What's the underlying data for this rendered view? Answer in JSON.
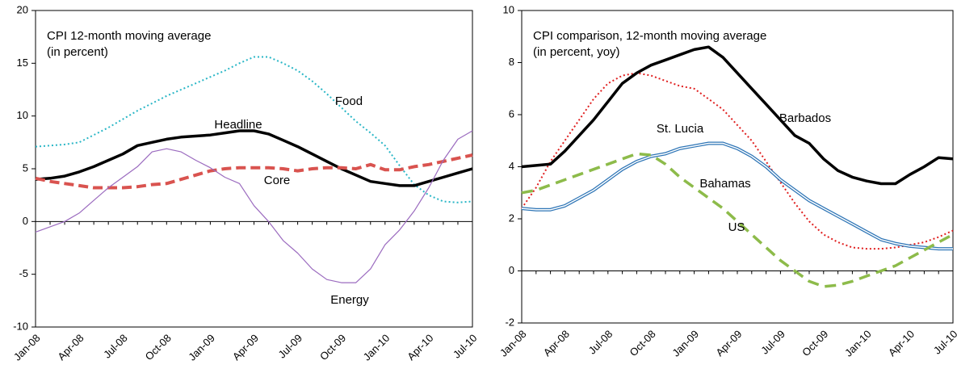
{
  "chart_data": [
    {
      "type": "line",
      "title": "CPI 12-month moving average",
      "subtitle": "(in percent)",
      "categories": [
        "Jan-08",
        null,
        null,
        "Apr-08",
        null,
        null,
        "Jul-08",
        null,
        null,
        "Oct-08",
        null,
        null,
        "Jan-09",
        null,
        null,
        "Apr-09",
        null,
        null,
        "Jul-09",
        null,
        null,
        "Oct-09",
        null,
        null,
        "Jan-10",
        null,
        null,
        "Apr-10",
        null,
        null,
        "Jul-10"
      ],
      "ylim": [
        -10,
        20
      ],
      "yticks": [
        -10,
        -5,
        0,
        5,
        10,
        15,
        20
      ],
      "series": [
        {
          "name": "Food",
          "color": "#29b6c6",
          "values": [
            7.1,
            7.2,
            7.3,
            7.5,
            8.2,
            8.9,
            9.7,
            10.5,
            11.2,
            11.9,
            12.5,
            13.1,
            13.7,
            14.3,
            15.0,
            15.6,
            15.6,
            15.0,
            14.3,
            13.3,
            12.1,
            10.8,
            9.5,
            8.4,
            7.2,
            5.3,
            3.5,
            2.5,
            1.9,
            1.8,
            1.9
          ]
        },
        {
          "name": "Headline",
          "color": "#000000",
          "values": [
            4.0,
            4.1,
            4.3,
            4.7,
            5.2,
            5.8,
            6.4,
            7.2,
            7.5,
            7.8,
            8.0,
            8.1,
            8.2,
            8.4,
            8.6,
            8.6,
            8.3,
            7.7,
            7.1,
            6.4,
            5.7,
            5.0,
            4.4,
            3.8,
            3.6,
            3.4,
            3.4,
            3.8,
            4.2,
            4.6,
            5.0
          ]
        },
        {
          "name": "Core",
          "color": "#d9534f",
          "values": [
            4.1,
            3.8,
            3.6,
            3.4,
            3.2,
            3.2,
            3.2,
            3.3,
            3.5,
            3.6,
            4.0,
            4.4,
            4.8,
            5.0,
            5.1,
            5.1,
            5.1,
            5.0,
            4.8,
            5.0,
            5.1,
            5.1,
            5.0,
            5.4,
            4.9,
            4.9,
            5.2,
            5.4,
            5.7,
            6.0,
            6.3
          ]
        },
        {
          "name": "Energy",
          "color": "#9b6bbf",
          "values": [
            -1.0,
            -0.5,
            0.0,
            0.8,
            2.0,
            3.2,
            4.2,
            5.2,
            6.6,
            6.9,
            6.6,
            5.8,
            5.1,
            4.2,
            3.6,
            1.5,
            0.0,
            -1.8,
            -3.0,
            -4.5,
            -5.5,
            -5.8,
            -5.8,
            -4.5,
            -2.2,
            -0.8,
            1.0,
            3.2,
            5.8,
            7.8,
            8.6
          ]
        }
      ]
    },
    {
      "type": "line",
      "title": "CPI comparison, 12-month moving average",
      "subtitle": "(in percent, yoy)",
      "categories": [
        "Jan-08",
        null,
        null,
        "Apr-08",
        null,
        null,
        "Jul-08",
        null,
        null,
        "Oct-08",
        null,
        null,
        "Jan-09",
        null,
        null,
        "Apr-09",
        null,
        null,
        "Jul-09",
        null,
        null,
        "Oct-09",
        null,
        null,
        "Jan-10",
        null,
        null,
        "Apr-10",
        null,
        null,
        "Jul-10"
      ],
      "ylim": [
        -2,
        10
      ],
      "yticks": [
        -2,
        0,
        2,
        4,
        6,
        8,
        10
      ],
      "series": [
        {
          "name": "St. Lucia",
          "color": "#e02020",
          "values": [
            2.4,
            3.2,
            4.2,
            5.0,
            5.8,
            6.6,
            7.2,
            7.5,
            7.6,
            7.5,
            7.3,
            7.1,
            7.0,
            6.6,
            6.2,
            5.6,
            5.0,
            4.2,
            3.4,
            2.6,
            1.9,
            1.4,
            1.1,
            0.9,
            0.85,
            0.85,
            0.9,
            1.0,
            1.1,
            1.3,
            1.55
          ]
        },
        {
          "name": "Barbados",
          "color": "#000000",
          "values": [
            4.0,
            4.05,
            4.1,
            4.6,
            5.2,
            5.8,
            6.5,
            7.2,
            7.6,
            7.9,
            8.1,
            8.3,
            8.5,
            8.6,
            8.2,
            7.6,
            7.0,
            6.4,
            5.8,
            5.2,
            4.9,
            4.3,
            3.85,
            3.6,
            3.45,
            3.35,
            3.35,
            3.7,
            4.0,
            4.35,
            4.3
          ]
        },
        {
          "name": "Bahamas",
          "color": "#2e75b6",
          "values": [
            2.4,
            2.35,
            2.35,
            2.5,
            2.8,
            3.1,
            3.5,
            3.9,
            4.2,
            4.4,
            4.5,
            4.7,
            4.8,
            4.9,
            4.9,
            4.7,
            4.4,
            4.0,
            3.5,
            3.1,
            2.7,
            2.4,
            2.1,
            1.8,
            1.5,
            1.2,
            1.05,
            0.95,
            0.9,
            0.85,
            0.85
          ]
        },
        {
          "name": "US",
          "color": "#8dbb4a",
          "values": [
            3.0,
            3.1,
            3.3,
            3.5,
            3.7,
            3.9,
            4.1,
            4.3,
            4.5,
            4.45,
            4.1,
            3.6,
            3.2,
            2.8,
            2.4,
            1.9,
            1.4,
            0.9,
            0.4,
            0.0,
            -0.4,
            -0.6,
            -0.55,
            -0.4,
            -0.2,
            0.0,
            0.2,
            0.5,
            0.8,
            1.1,
            1.4
          ]
        }
      ]
    }
  ]
}
